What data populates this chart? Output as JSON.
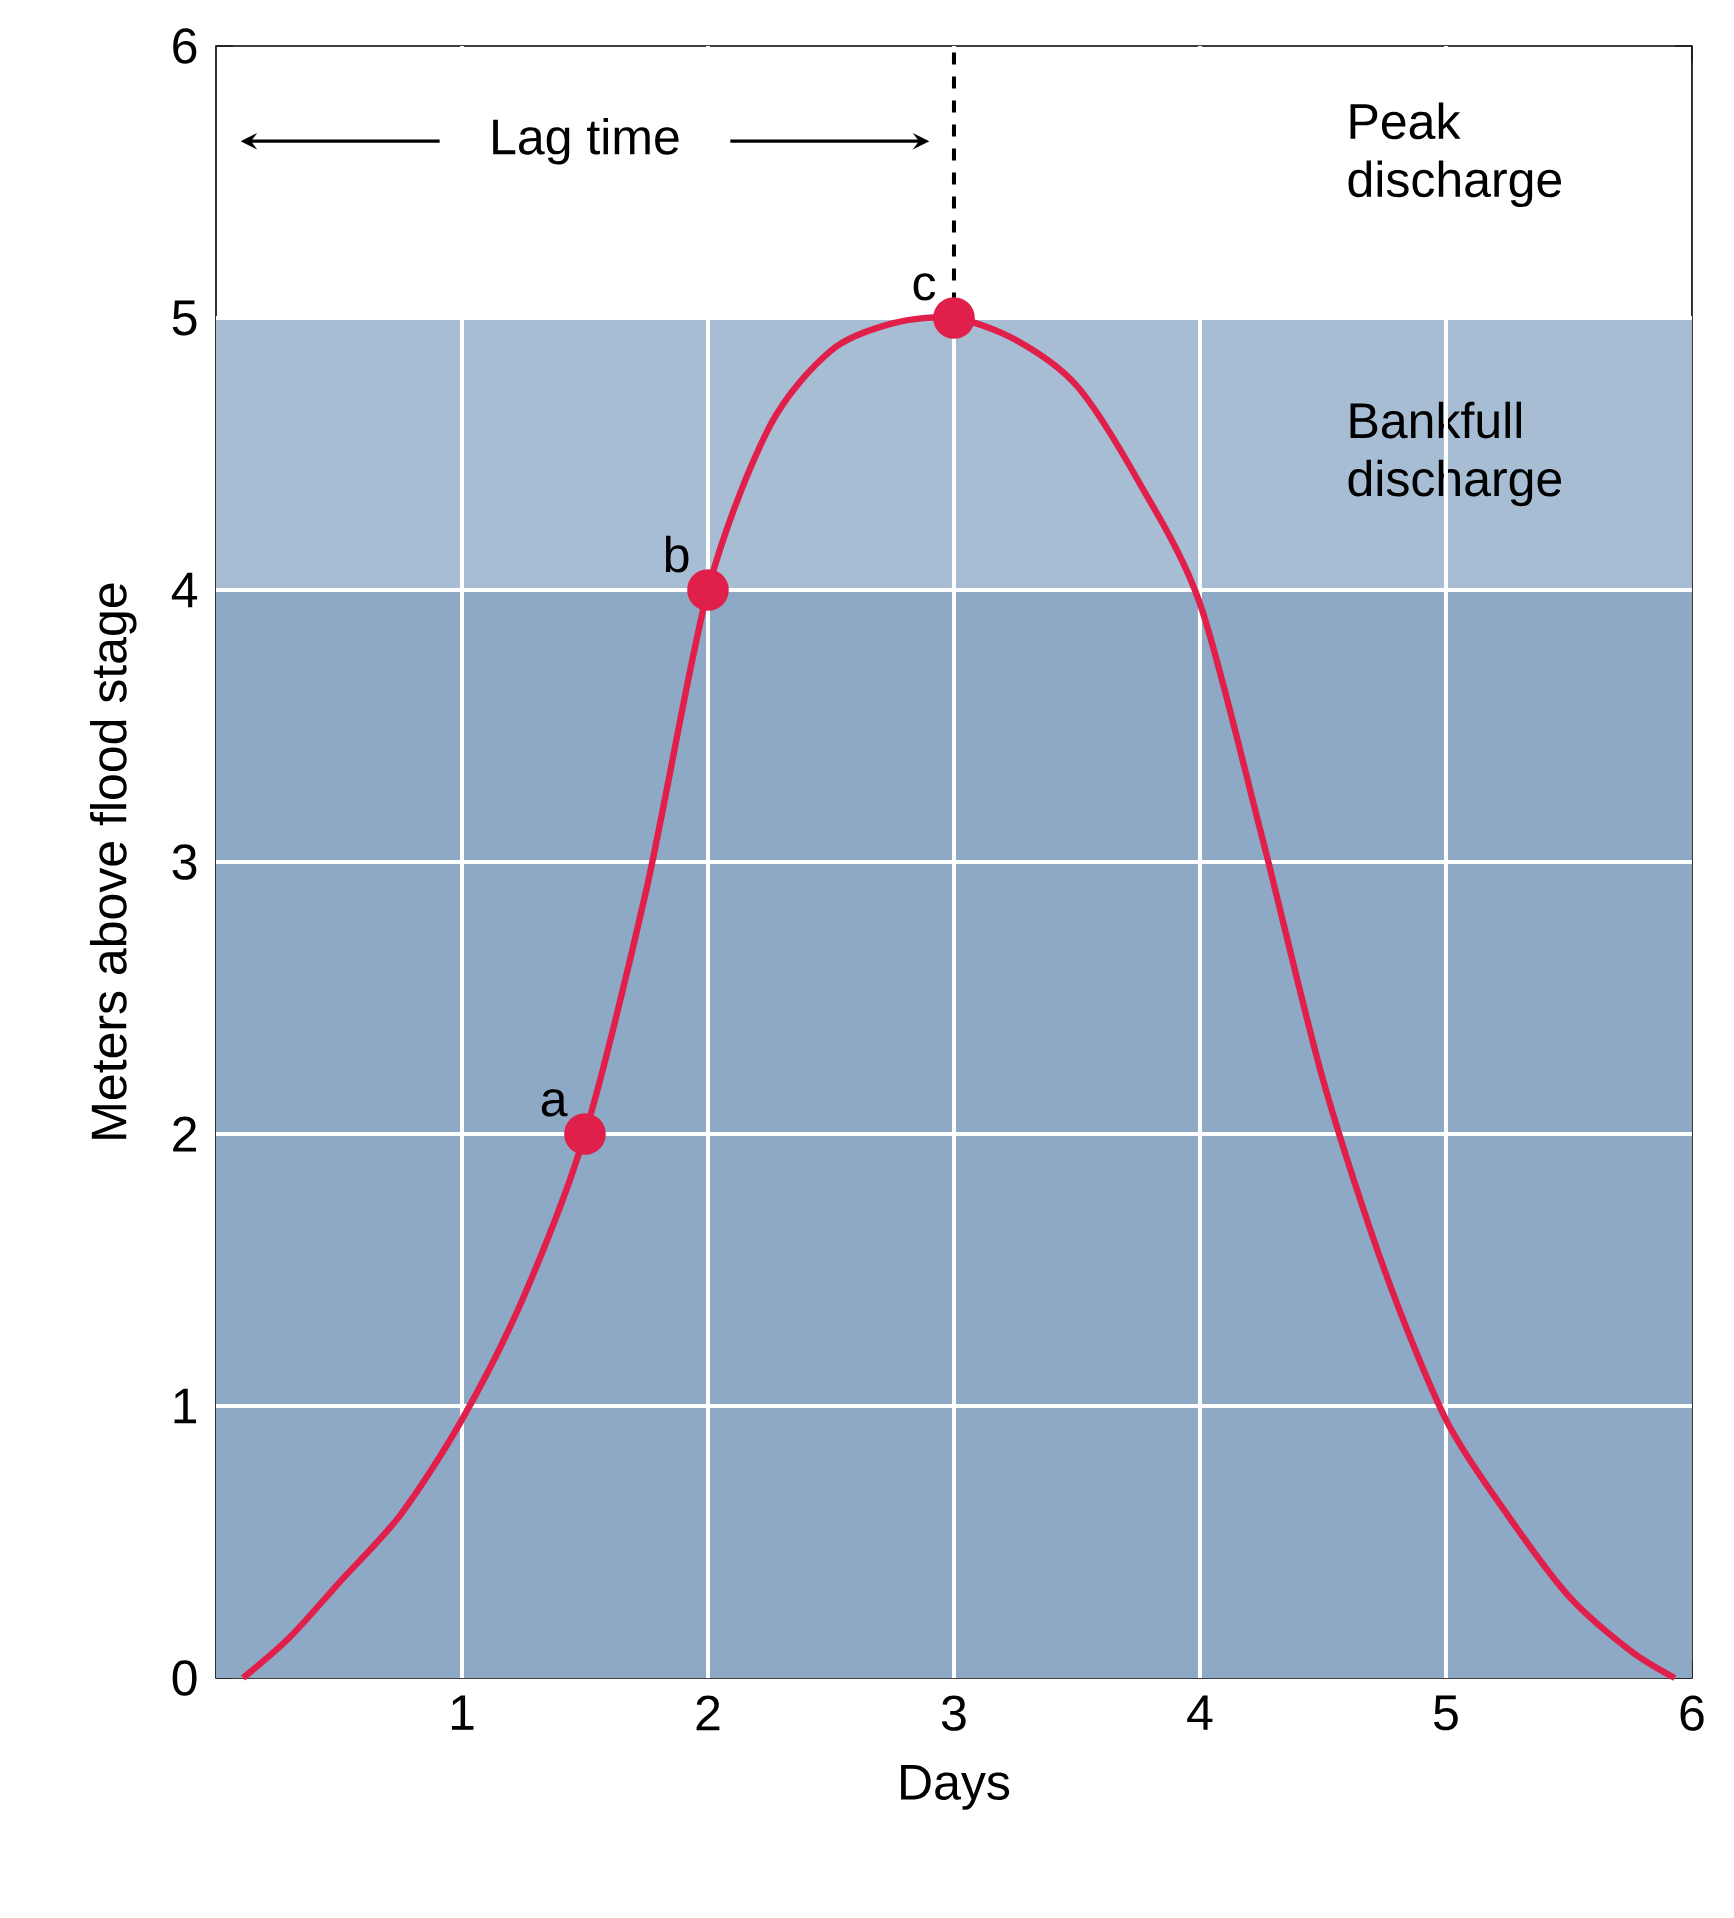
{
  "chart_data": {
    "type": "line",
    "xlabel": "Days",
    "ylabel": "Meters above flood stage",
    "xlim": [
      0,
      6
    ],
    "ylim": [
      0,
      6
    ],
    "xticks": [
      1,
      2,
      3,
      4,
      5,
      6
    ],
    "yticks": [
      0,
      1,
      2,
      3,
      4,
      5,
      6
    ],
    "grid": true,
    "series": [
      {
        "color": "#e0204a",
        "marker": "none",
        "x": [
          0.11,
          0.3,
          0.5,
          0.75,
          1.0,
          1.25,
          1.5,
          1.75,
          2.0,
          2.25,
          2.5,
          2.75,
          3.0,
          3.25,
          3.5,
          3.75,
          4.0,
          4.25,
          4.5,
          4.75,
          5.0,
          5.25,
          5.5,
          5.75,
          5.93
        ],
        "values": [
          0,
          0.15,
          0.35,
          0.6,
          0.95,
          1.4,
          2.0,
          2.9,
          4.0,
          4.6,
          4.88,
          4.98,
          5.0,
          4.92,
          4.75,
          4.4,
          3.95,
          3.1,
          2.2,
          1.5,
          0.95,
          0.6,
          0.3,
          0.1,
          0
        ]
      },
      {
        "type": "scatter",
        "color": "#e0204a",
        "marker": "circle",
        "x": [
          1.5,
          2,
          3
        ],
        "values": [
          2,
          4,
          5
        ]
      }
    ],
    "bands": [
      {
        "axis": "y",
        "from": 0,
        "to": 4,
        "color": "#8ea9c6"
      },
      {
        "axis": "y",
        "from": 4,
        "to": 5,
        "label": "Bankfull discharge",
        "color": "#a7bdd4"
      }
    ],
    "ref_lines": [
      {
        "axis": "x",
        "value": 3,
        "line_style": "dashed",
        "color": "#000000"
      }
    ],
    "annotations": [
      {
        "text": "a",
        "x": 1.5,
        "y": 2
      },
      {
        "text": "b",
        "x": 2,
        "y": 4
      },
      {
        "text": "c",
        "x": 3,
        "y": 5
      },
      "Peak discharge",
      "Lag time"
    ]
  }
}
